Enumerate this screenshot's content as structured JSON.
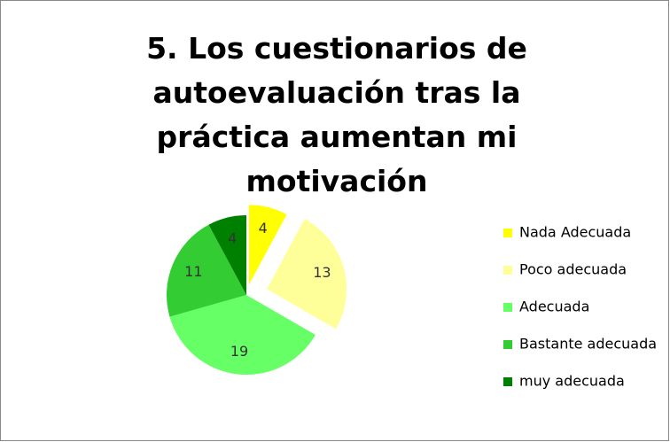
{
  "chart_data": {
    "type": "pie",
    "title": "5. Los cuestionarios de autoevaluación tras la práctica aumentan mi motivación",
    "categories": [
      "Nada Adecuada",
      "Poco adecuada",
      "Adecuada",
      "Bastante adecuada",
      "muy adecuada"
    ],
    "values": [
      4,
      13,
      19,
      11,
      4
    ],
    "colors": [
      "#ffff00",
      "#ffff99",
      "#66ff66",
      "#33cc33",
      "#008000"
    ],
    "legend": "right"
  }
}
